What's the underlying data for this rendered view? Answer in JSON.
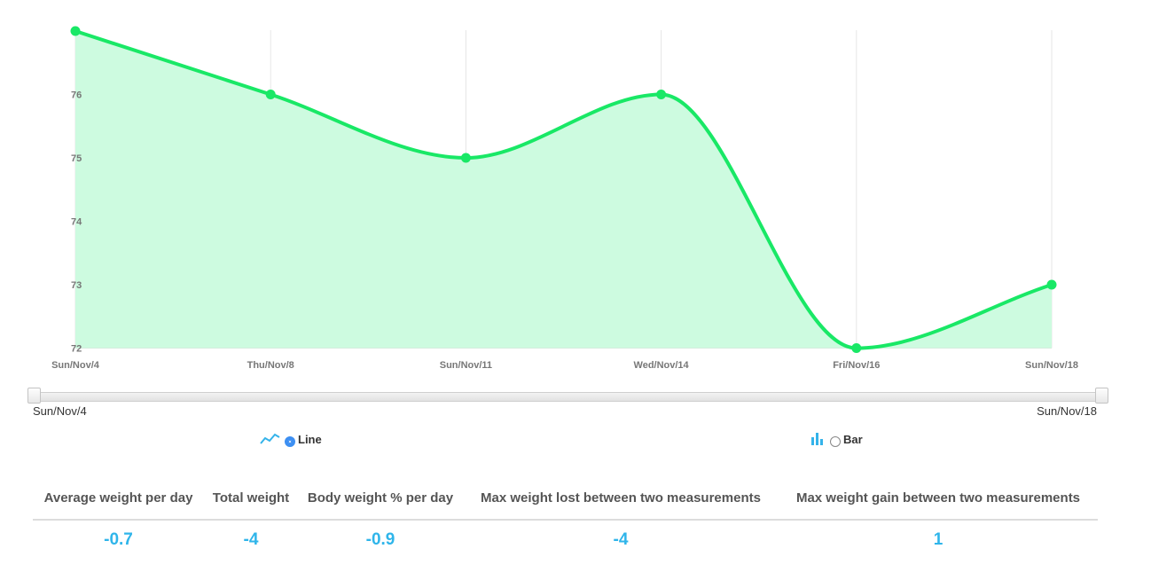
{
  "chart_data": {
    "type": "area",
    "x": [
      "Sun/Nov/4",
      "Thu/Nov/8",
      "Sun/Nov/11",
      "Wed/Nov/14",
      "Fri/Nov/16",
      "Sun/Nov/18"
    ],
    "values": [
      77,
      76,
      75,
      76,
      72,
      73
    ],
    "yticks": [
      72,
      73,
      74,
      75,
      76
    ],
    "ylim": [
      72,
      77
    ],
    "grid": "vertical",
    "line_color": "#19e866",
    "fill_color": "#cdfbe0"
  },
  "range": {
    "start_label": "Sun/Nov/4",
    "end_label": "Sun/Nov/18"
  },
  "chart_type": {
    "line": {
      "label": "Line",
      "icon": "line-chart-icon",
      "selected": true
    },
    "bar": {
      "label": "Bar",
      "icon": "bar-chart-icon",
      "selected": false
    }
  },
  "accent_color": "#2fb5ea",
  "stats": {
    "headers": [
      "Average weight per day",
      "Total weight",
      "Body weight % per day",
      "Max weight lost between two measurements",
      "Max weight gain between two measurements"
    ],
    "values": [
      "-0.7",
      "-4",
      "-0.9",
      "-4",
      "1"
    ]
  }
}
